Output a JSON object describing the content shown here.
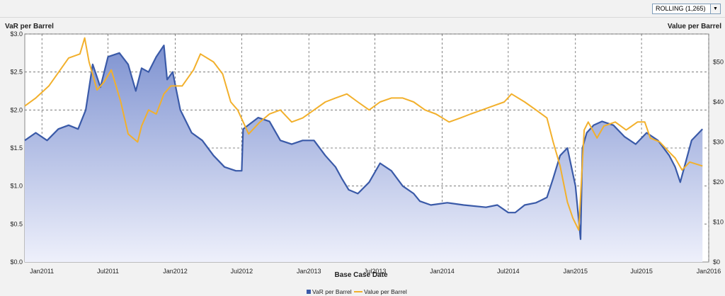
{
  "controls": {
    "rolling_label": "ROLLING (1,265)",
    "dropdown_icon": "chevron-down-icon"
  },
  "colors": {
    "var_line": "#3a5aa8",
    "var_fill_top": "#7f93d1",
    "var_fill_bottom": "#eef0fb",
    "value_line": "#f2b02c",
    "grid": "#666666"
  },
  "chart_data": {
    "type": "line",
    "xlabel": "Base Case Date",
    "ylabel_left": "VaR per Barrel",
    "ylabel_right": "Value per Barrel",
    "grid": true,
    "legend_position": "bottom-center",
    "xlim": [
      "2010-11-15",
      "2016-01-01"
    ],
    "ylim_left": [
      0,
      3.0
    ],
    "ylim_right": [
      0,
      57
    ],
    "x_ticks": [
      "Jan2011",
      "Jul2011",
      "Jan2012",
      "Jul2012",
      "Jan2013",
      "Jul2013",
      "Jan2014",
      "Jul2014",
      "Jan2015",
      "Jul2015",
      "Jan2016"
    ],
    "y_left_ticks": [
      "$0.0",
      "$0.5",
      "$1.0",
      "$1.5",
      "$2.0",
      "$2.5",
      "$3.0"
    ],
    "y_right_ticks": [
      "$0",
      "$10",
      "$20",
      "$30",
      "$40",
      "$50"
    ],
    "series": [
      {
        "name": "VaR per Barrel",
        "axis": "left",
        "style": "area",
        "x": [
          "2010-11-15",
          "2010-12-15",
          "2011-01-15",
          "2011-02-15",
          "2011-03-15",
          "2011-04-10",
          "2011-05-01",
          "2011-05-20",
          "2011-06-10",
          "2011-07-01",
          "2011-08-01",
          "2011-08-25",
          "2011-09-15",
          "2011-10-01",
          "2011-10-20",
          "2011-11-10",
          "2011-12-01",
          "2011-12-10",
          "2011-12-25",
          "2012-01-15",
          "2012-02-15",
          "2012-03-15",
          "2012-04-15",
          "2012-05-15",
          "2012-06-15",
          "2012-07-01",
          "2012-07-05",
          "2012-08-15",
          "2012-09-15",
          "2012-10-15",
          "2012-11-15",
          "2012-12-15",
          "2013-01-15",
          "2013-02-15",
          "2013-03-15",
          "2013-04-01",
          "2013-04-20",
          "2013-05-15",
          "2013-06-15",
          "2013-07-15",
          "2013-08-15",
          "2013-09-15",
          "2013-10-15",
          "2013-11-01",
          "2013-12-01",
          "2014-01-15",
          "2014-03-01",
          "2014-05-01",
          "2014-06-01",
          "2014-07-01",
          "2014-07-20",
          "2014-08-15",
          "2014-09-15",
          "2014-10-15",
          "2014-11-01",
          "2014-11-20",
          "2014-12-10",
          "2015-01-01",
          "2015-01-15",
          "2015-01-20",
          "2015-02-01",
          "2015-02-20",
          "2015-03-15",
          "2015-04-15",
          "2015-05-15",
          "2015-06-15",
          "2015-07-15",
          "2015-08-15",
          "2015-09-15",
          "2015-10-01",
          "2015-10-15",
          "2015-11-15",
          "2015-12-15"
        ],
        "y": [
          1.6,
          1.7,
          1.6,
          1.75,
          1.8,
          1.75,
          2.0,
          2.6,
          2.3,
          2.7,
          2.75,
          2.6,
          2.25,
          2.55,
          2.5,
          2.7,
          2.85,
          2.4,
          2.5,
          2.0,
          1.7,
          1.6,
          1.4,
          1.25,
          1.2,
          1.2,
          1.75,
          1.9,
          1.85,
          1.6,
          1.55,
          1.6,
          1.6,
          1.4,
          1.25,
          1.1,
          0.95,
          0.9,
          1.05,
          1.3,
          1.2,
          1.0,
          0.9,
          0.8,
          0.75,
          0.78,
          0.75,
          0.72,
          0.75,
          0.65,
          0.65,
          0.75,
          0.78,
          0.85,
          1.1,
          1.4,
          1.5,
          1.0,
          0.3,
          1.5,
          1.7,
          1.8,
          1.85,
          1.8,
          1.65,
          1.55,
          1.7,
          1.6,
          1.4,
          1.25,
          1.05,
          1.6,
          1.75
        ]
      },
      {
        "name": "Value per Barrel",
        "axis": "right",
        "style": "line",
        "x": [
          "2010-11-15",
          "2010-12-15",
          "2011-01-20",
          "2011-02-20",
          "2011-03-15",
          "2011-04-15",
          "2011-04-28",
          "2011-05-10",
          "2011-06-01",
          "2011-06-20",
          "2011-07-10",
          "2011-08-05",
          "2011-08-25",
          "2011-09-20",
          "2011-10-01",
          "2011-10-20",
          "2011-11-10",
          "2011-12-01",
          "2011-12-20",
          "2012-01-20",
          "2012-02-20",
          "2012-03-10",
          "2012-04-15",
          "2012-05-10",
          "2012-06-01",
          "2012-06-20",
          "2012-07-20",
          "2012-08-20",
          "2012-09-15",
          "2012-10-15",
          "2012-11-15",
          "2012-12-15",
          "2013-01-15",
          "2013-02-15",
          "2013-03-15",
          "2013-04-15",
          "2013-05-15",
          "2013-06-15",
          "2013-07-15",
          "2013-08-15",
          "2013-09-15",
          "2013-10-15",
          "2013-11-15",
          "2013-12-15",
          "2014-01-20",
          "2014-02-20",
          "2014-03-20",
          "2014-04-20",
          "2014-05-20",
          "2014-06-20",
          "2014-07-10",
          "2014-08-15",
          "2014-09-15",
          "2014-10-15",
          "2014-11-01",
          "2014-11-20",
          "2014-12-10",
          "2014-12-25",
          "2015-01-10",
          "2015-01-25",
          "2015-02-05",
          "2015-03-01",
          "2015-03-20",
          "2015-04-20",
          "2015-05-20",
          "2015-06-20",
          "2015-07-10",
          "2015-07-25",
          "2015-08-20",
          "2015-09-20",
          "2015-10-01",
          "2015-10-20",
          "2015-11-10",
          "2015-12-15"
        ],
        "y": [
          39,
          41,
          44,
          48,
          51,
          52,
          56,
          50,
          43,
          45,
          48,
          40,
          32,
          30,
          34,
          38,
          37,
          42,
          44,
          44,
          48,
          52,
          50,
          47,
          40,
          38,
          32,
          35,
          37,
          38,
          35,
          36,
          38,
          40,
          41,
          42,
          40,
          38,
          40,
          41,
          41,
          40,
          38,
          37,
          35,
          36,
          37,
          38,
          39,
          40,
          42,
          40,
          38,
          36,
          30,
          24,
          15,
          11,
          8,
          33,
          35,
          31,
          34,
          35,
          33,
          35,
          35,
          31,
          30,
          27,
          26,
          23,
          25,
          24
        ]
      }
    ]
  }
}
